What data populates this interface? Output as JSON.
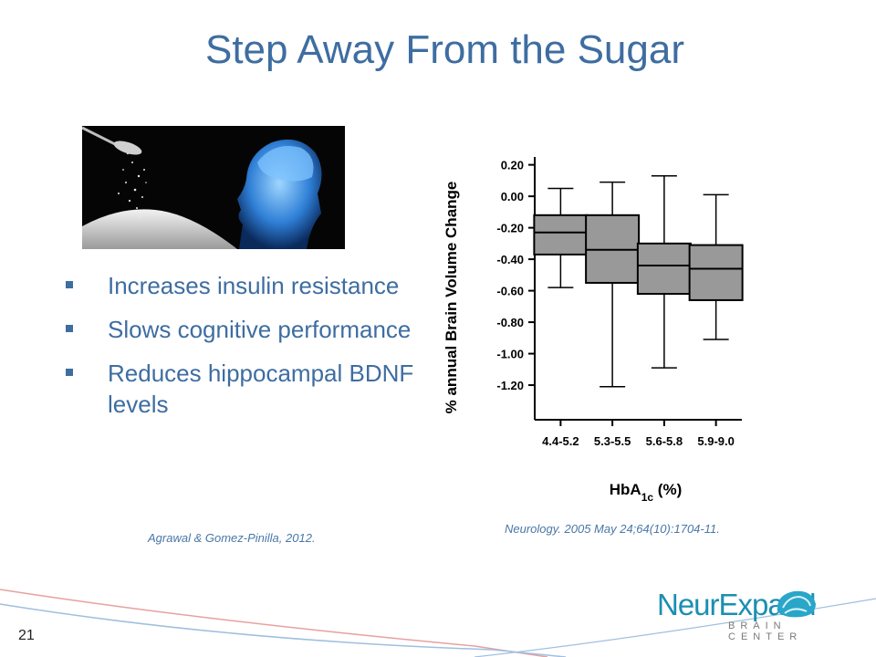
{
  "slide": {
    "title": "Step Away From the Sugar",
    "number": "21"
  },
  "bullets": [
    "Increases insulin resistance",
    "Slows cognitive performance",
    "Reduces hippocampal BDNF levels"
  ],
  "citations": {
    "left": "Agrawal & Gomez-Pinilla, 2012.",
    "right": "Neurology. 2005 May 24;64(10):1704-11."
  },
  "logo": {
    "name": "NeurExpand",
    "tagline": "BRAIN CENTER"
  },
  "colors": {
    "title": "#3e6da1",
    "box_fill": "#999999",
    "logo": "#1b8fb1"
  },
  "chart_data": {
    "type": "boxplot",
    "ylabel": "% annual Brain Volume Change",
    "xlabel": "HbA",
    "xlabel_sub": "1c",
    "xlabel_unit": " (%)",
    "categories": [
      "4.4-5.2",
      "5.3-5.5",
      "5.6-5.8",
      "5.9-9.0"
    ],
    "yticks": [
      "0.20",
      "0.00",
      "-0.20",
      "-0.40",
      "-0.60",
      "-0.80",
      "-1.00",
      "-1.20"
    ],
    "ylim": [
      -1.42,
      0.25
    ],
    "grid": false,
    "boxes": [
      {
        "whisker_high": 0.05,
        "q3": -0.12,
        "median": -0.23,
        "q1": -0.37,
        "whisker_low": -0.58
      },
      {
        "whisker_high": 0.09,
        "q3": -0.12,
        "median": -0.34,
        "q1": -0.55,
        "whisker_low": -1.21
      },
      {
        "whisker_high": 0.13,
        "q3": -0.3,
        "median": -0.44,
        "q1": -0.62,
        "whisker_low": -1.09
      },
      {
        "whisker_high": 0.01,
        "q3": -0.31,
        "median": -0.46,
        "q1": -0.66,
        "whisker_low": -0.91
      }
    ]
  }
}
